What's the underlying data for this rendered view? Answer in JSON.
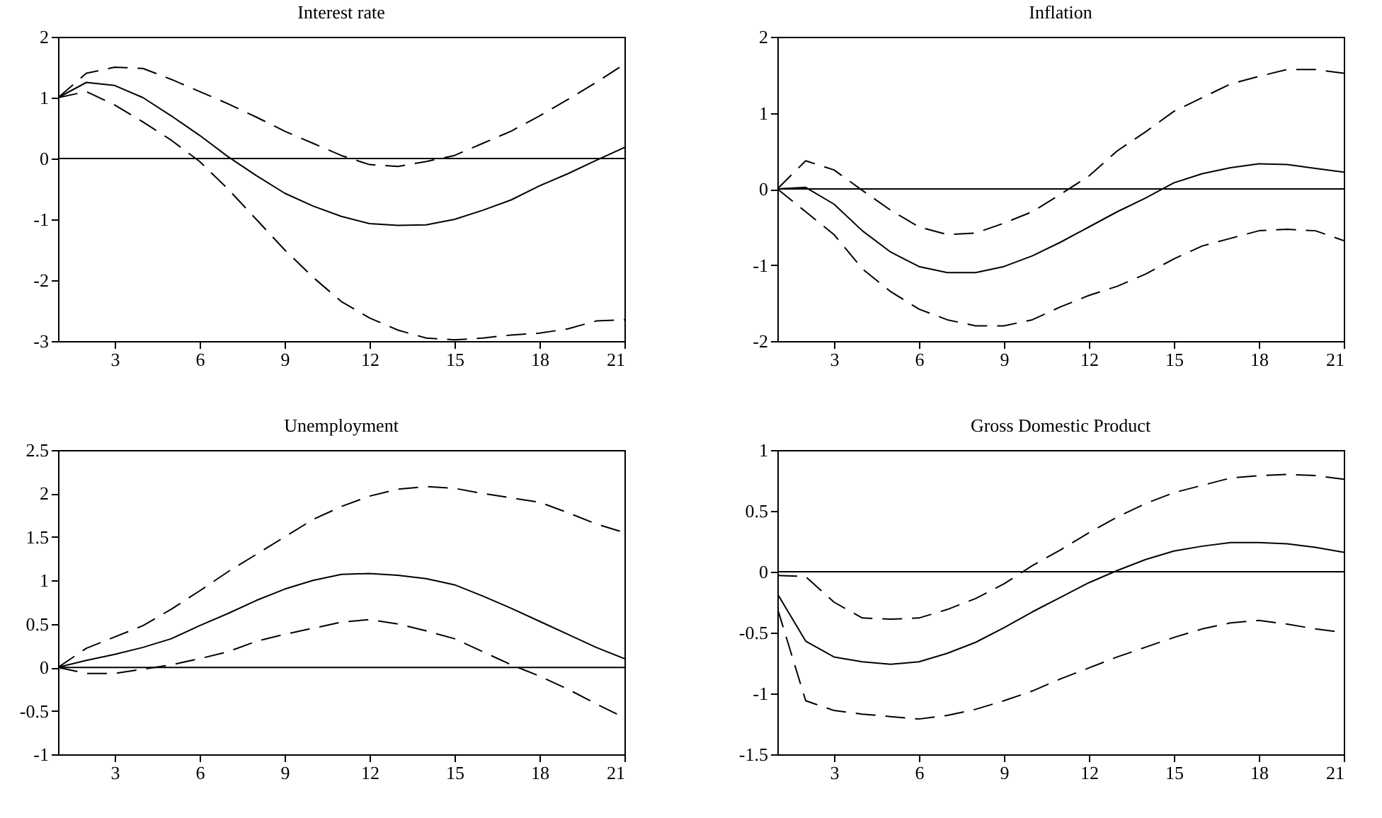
{
  "chart_data": [
    {
      "type": "line",
      "title": "Interest rate",
      "x": [
        1,
        2,
        3,
        4,
        5,
        6,
        7,
        8,
        9,
        10,
        11,
        12,
        13,
        14,
        15,
        16,
        17,
        18,
        19,
        20,
        21
      ],
      "xlim": [
        1,
        21
      ],
      "xticks": [
        3,
        6,
        9,
        12,
        15,
        18,
        21
      ],
      "ylim": [
        -3,
        2
      ],
      "yticks": [
        -3,
        -2,
        -1,
        0,
        1,
        2
      ],
      "grid": false,
      "ref_lines": [
        {
          "axis": "y",
          "value": 0,
          "color": "#000000"
        }
      ],
      "series": [
        {
          "color": "#000000",
          "line_style": "dashed",
          "values": [
            1,
            1.4,
            1.5,
            1.48,
            1.3,
            1.1,
            0.9,
            0.68,
            0.45,
            0.25,
            0.05,
            -0.1,
            -0.13,
            -0.05,
            0.05,
            0.25,
            0.45,
            0.7,
            0.97,
            1.25,
            1.55
          ]
        },
        {
          "color": "#000000",
          "line_style": "solid",
          "values": [
            1,
            1.25,
            1.2,
            1.0,
            0.7,
            0.38,
            0.03,
            -0.28,
            -0.57,
            -0.78,
            -0.95,
            -1.07,
            -1.1,
            -1.09,
            -1.0,
            -0.85,
            -0.68,
            -0.45,
            -0.25,
            -0.03,
            0.18
          ]
        },
        {
          "color": "#000000",
          "line_style": "dashed",
          "values": [
            1,
            1.1,
            0.88,
            0.6,
            0.3,
            -0.05,
            -0.5,
            -1.0,
            -1.5,
            -1.95,
            -2.35,
            -2.62,
            -2.82,
            -2.95,
            -2.98,
            -2.95,
            -2.9,
            -2.87,
            -2.8,
            -2.67,
            -2.65
          ]
        }
      ]
    },
    {
      "type": "line",
      "title": "Inflation",
      "x": [
        1,
        2,
        3,
        4,
        5,
        6,
        7,
        8,
        9,
        10,
        11,
        12,
        13,
        14,
        15,
        16,
        17,
        18,
        19,
        20,
        21
      ],
      "xlim": [
        1,
        21
      ],
      "xticks": [
        3,
        6,
        9,
        12,
        15,
        18,
        21
      ],
      "ylim": [
        -2,
        2
      ],
      "yticks": [
        -2,
        -1,
        0,
        1,
        2
      ],
      "grid": false,
      "ref_lines": [
        {
          "axis": "y",
          "value": 0,
          "color": "#000000"
        }
      ],
      "series": [
        {
          "color": "#000000",
          "line_style": "dashed",
          "values": [
            0,
            0.37,
            0.25,
            -0.02,
            -0.28,
            -0.5,
            -0.6,
            -0.58,
            -0.45,
            -0.3,
            -0.07,
            0.17,
            0.5,
            0.75,
            1.02,
            1.2,
            1.38,
            1.48,
            1.57,
            1.57,
            1.52
          ]
        },
        {
          "color": "#000000",
          "line_style": "solid",
          "values": [
            0,
            0.02,
            -0.2,
            -0.55,
            -0.83,
            -1.02,
            -1.1,
            -1.1,
            -1.02,
            -0.88,
            -0.7,
            -0.5,
            -0.3,
            -0.12,
            0.08,
            0.2,
            0.28,
            0.33,
            0.32,
            0.27,
            0.22
          ]
        },
        {
          "color": "#000000",
          "line_style": "dashed",
          "values": [
            0,
            -0.3,
            -0.6,
            -1.05,
            -1.35,
            -1.58,
            -1.72,
            -1.8,
            -1.8,
            -1.72,
            -1.55,
            -1.4,
            -1.28,
            -1.12,
            -0.92,
            -0.75,
            -0.65,
            -0.55,
            -0.53,
            -0.55,
            -0.68
          ]
        }
      ]
    },
    {
      "type": "line",
      "title": "Unemployment",
      "x": [
        1,
        2,
        3,
        4,
        5,
        6,
        7,
        8,
        9,
        10,
        11,
        12,
        13,
        14,
        15,
        16,
        17,
        18,
        19,
        20,
        21
      ],
      "xlim": [
        1,
        21
      ],
      "xticks": [
        3,
        6,
        9,
        12,
        15,
        18,
        21
      ],
      "ylim": [
        -1,
        2.5
      ],
      "yticks": [
        -1,
        -0.5,
        0,
        0.5,
        1,
        1.5,
        2,
        2.5
      ],
      "grid": false,
      "ref_lines": [
        {
          "axis": "y",
          "value": 0,
          "color": "#000000"
        }
      ],
      "series": [
        {
          "color": "#000000",
          "line_style": "dashed",
          "values": [
            0,
            0.22,
            0.35,
            0.48,
            0.67,
            0.88,
            1.1,
            1.3,
            1.5,
            1.7,
            1.85,
            1.97,
            2.05,
            2.08,
            2.06,
            2.0,
            1.95,
            1.9,
            1.78,
            1.65,
            1.55
          ]
        },
        {
          "color": "#000000",
          "line_style": "solid",
          "values": [
            0,
            0.08,
            0.15,
            0.23,
            0.33,
            0.48,
            0.62,
            0.77,
            0.9,
            1.0,
            1.07,
            1.08,
            1.06,
            1.02,
            0.95,
            0.82,
            0.68,
            0.53,
            0.38,
            0.23,
            0.1
          ]
        },
        {
          "color": "#000000",
          "line_style": "dashed",
          "values": [
            0,
            -0.07,
            -0.07,
            -0.02,
            0.03,
            0.1,
            0.18,
            0.3,
            0.38,
            0.45,
            0.52,
            0.55,
            0.5,
            0.42,
            0.33,
            0.18,
            0.03,
            -0.1,
            -0.25,
            -0.42,
            -0.58
          ]
        }
      ]
    },
    {
      "type": "line",
      "title": "Gross Domestic Product",
      "x": [
        1,
        2,
        3,
        4,
        5,
        6,
        7,
        8,
        9,
        10,
        11,
        12,
        13,
        14,
        15,
        16,
        17,
        18,
        19,
        20,
        21
      ],
      "xlim": [
        1,
        21
      ],
      "xticks": [
        3,
        6,
        9,
        12,
        15,
        18,
        21
      ],
      "ylim": [
        -1.5,
        1
      ],
      "yticks": [
        -1.5,
        -1,
        -0.5,
        0,
        0.5,
        1
      ],
      "grid": false,
      "ref_lines": [
        {
          "axis": "y",
          "value": 0,
          "color": "#000000"
        }
      ],
      "series": [
        {
          "color": "#000000",
          "line_style": "dashed",
          "values": [
            -0.03,
            -0.04,
            -0.25,
            -0.38,
            -0.39,
            -0.38,
            -0.31,
            -0.22,
            -0.1,
            0.05,
            0.18,
            0.32,
            0.45,
            0.56,
            0.65,
            0.71,
            0.77,
            0.79,
            0.8,
            0.79,
            0.76
          ]
        },
        {
          "color": "#000000",
          "line_style": "solid",
          "values": [
            -0.18,
            -0.57,
            -0.7,
            -0.74,
            -0.76,
            -0.74,
            -0.67,
            -0.58,
            -0.46,
            -0.33,
            -0.21,
            -0.09,
            0.01,
            0.1,
            0.17,
            0.21,
            0.24,
            0.24,
            0.23,
            0.2,
            0.16
          ]
        },
        {
          "color": "#000000",
          "line_style": "dashed",
          "values": [
            -0.3,
            -1.06,
            -1.14,
            -1.17,
            -1.19,
            -1.21,
            -1.18,
            -1.13,
            -1.06,
            -0.98,
            -0.88,
            -0.79,
            -0.7,
            -0.62,
            -0.54,
            -0.47,
            -0.42,
            -0.4,
            -0.43,
            -0.47,
            -0.5
          ]
        }
      ]
    }
  ]
}
